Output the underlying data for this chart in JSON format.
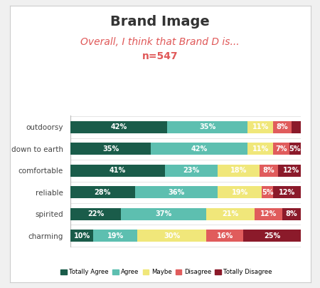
{
  "title": "Brand Image",
  "subtitle": "Overall, I think that Brand D is...",
  "subtitle2": "n=547",
  "categories": [
    "outdoorsy",
    "down to earth",
    "comfortable",
    "reliable",
    "spirited",
    "charming"
  ],
  "series": [
    {
      "label": "Totally Agree",
      "color": "#1a5c4a",
      "values": [
        42,
        35,
        41,
        28,
        22,
        10
      ]
    },
    {
      "label": "Agree",
      "color": "#5dbfb0",
      "values": [
        35,
        42,
        23,
        36,
        37,
        19
      ]
    },
    {
      "label": "Maybe",
      "color": "#f0e77a",
      "values": [
        11,
        11,
        18,
        19,
        21,
        30
      ]
    },
    {
      "label": "Disagree",
      "color": "#e05c5c",
      "values": [
        8,
        7,
        8,
        5,
        12,
        16
      ]
    },
    {
      "label": "Totally Disagree",
      "color": "#8b1a2a",
      "values": [
        4,
        5,
        12,
        12,
        8,
        25
      ]
    }
  ],
  "title_fontsize": 14,
  "subtitle_fontsize": 10,
  "subtitle_color": "#e05858",
  "label_fontsize": 7.5,
  "bar_label_fontsize": 7,
  "chart_background": "#ffffff",
  "outer_background": "#f0f0f0"
}
